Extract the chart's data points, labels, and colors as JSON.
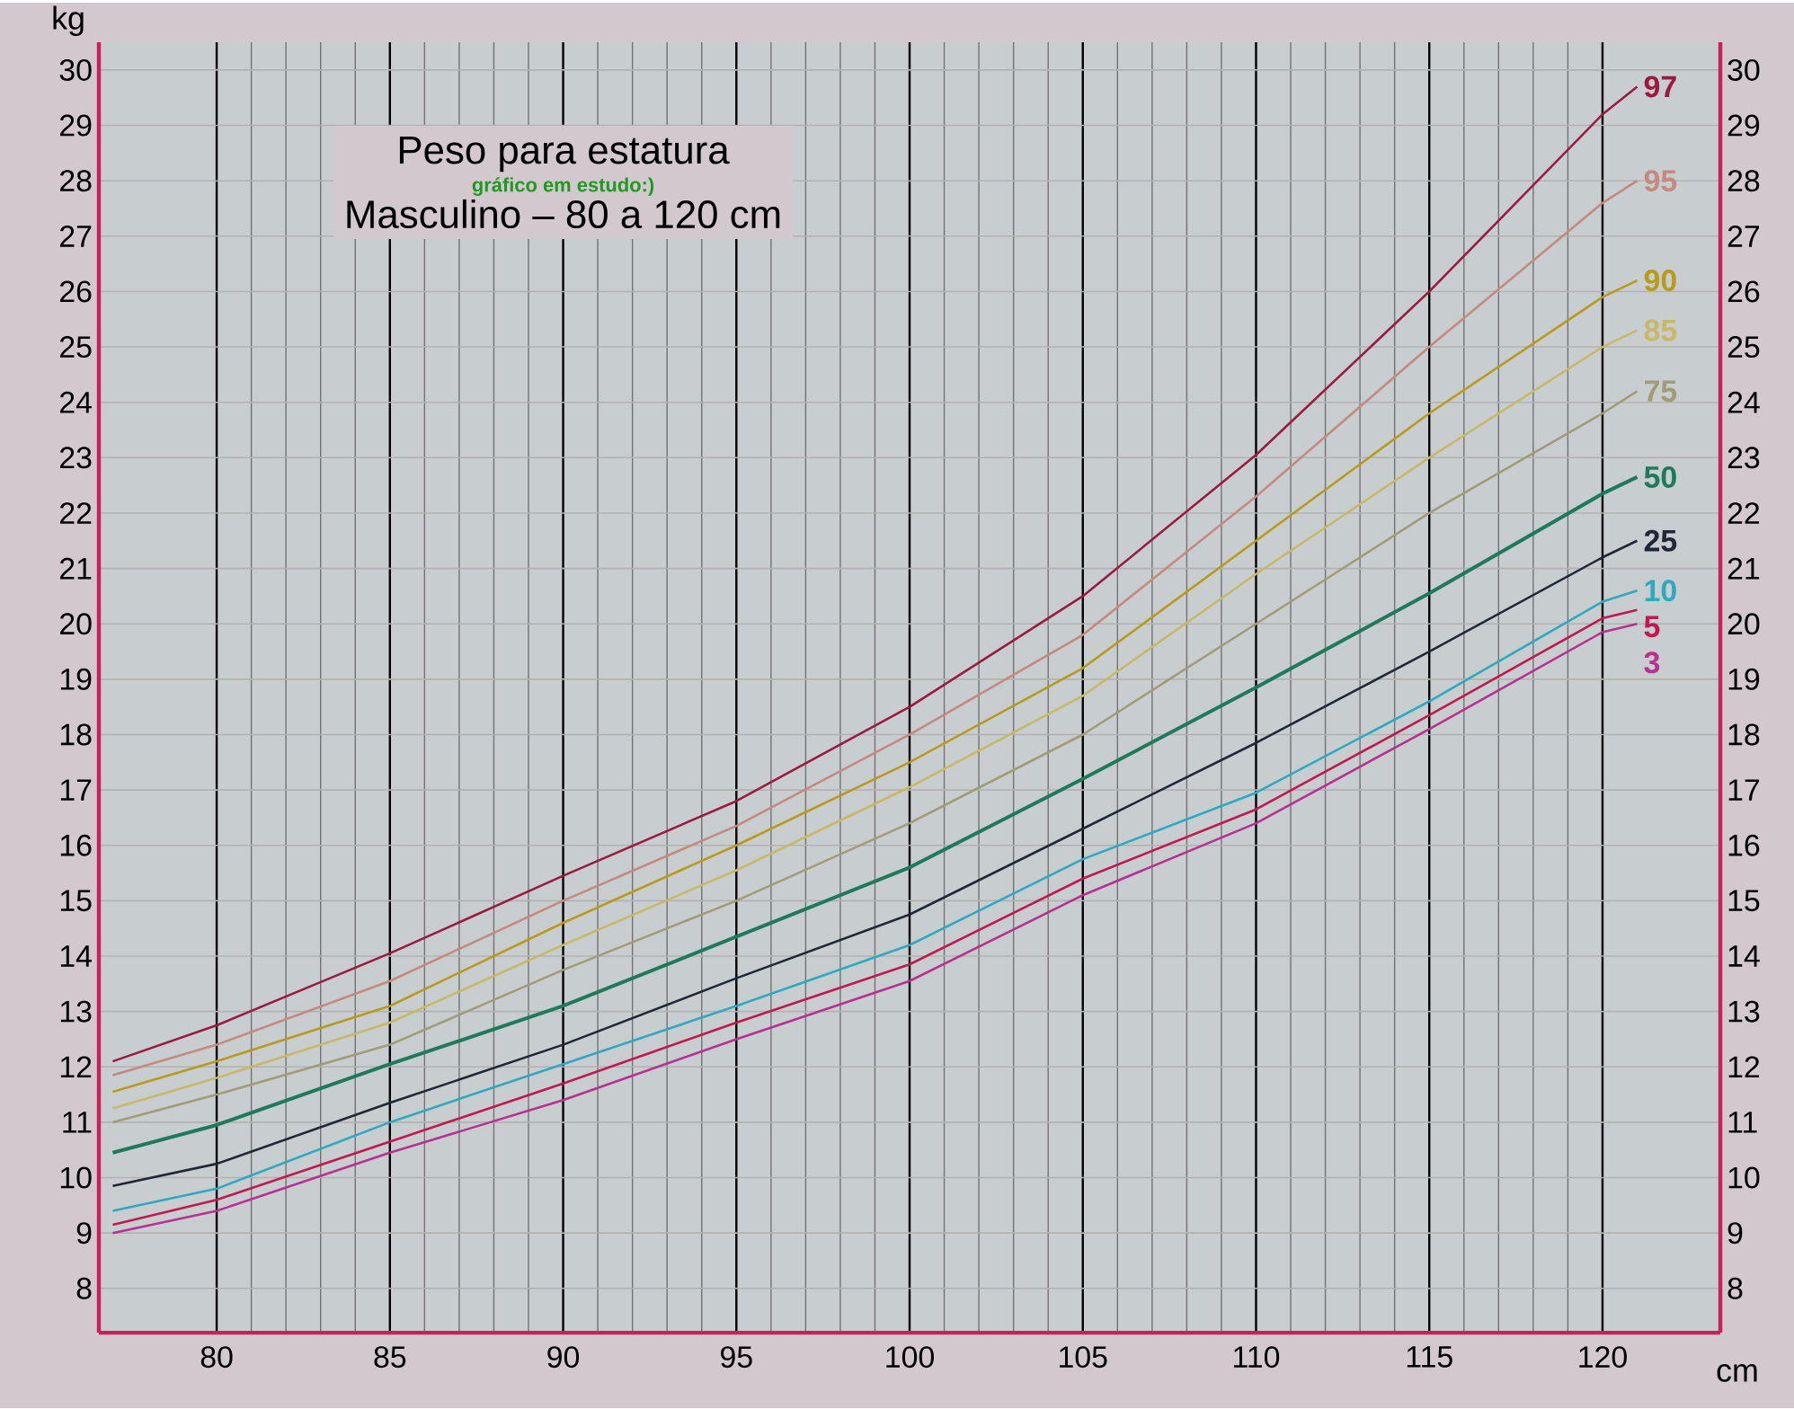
{
  "chart_data": {
    "type": "line",
    "title": "Peso para estatura",
    "subtitle": "Masculino – 80 a 120 cm",
    "xlabel": "cm",
    "ylabel": "kg",
    "annotations": [
      "gráfico em estudo:)"
    ],
    "x": [
      77,
      80,
      85,
      90,
      95,
      100,
      105,
      110,
      115,
      120,
      121
    ],
    "series": [
      {
        "name": "97",
        "color": "#9a1a40",
        "values": [
          12.1,
          12.75,
          14.05,
          15.45,
          16.8,
          18.5,
          20.5,
          23.05,
          26.0,
          29.2,
          29.7
        ]
      },
      {
        "name": "95",
        "color": "#c48a80",
        "values": [
          11.85,
          12.4,
          13.55,
          15.0,
          16.35,
          18.0,
          19.8,
          22.3,
          25.0,
          27.6,
          28.0
        ]
      },
      {
        "name": "90",
        "color": "#b89a1c",
        "values": [
          11.55,
          12.1,
          13.1,
          14.6,
          16.0,
          17.5,
          19.2,
          21.5,
          23.8,
          25.9,
          26.2
        ]
      },
      {
        "name": "85",
        "color": "#c8b868",
        "values": [
          11.25,
          11.8,
          12.8,
          14.2,
          15.55,
          17.05,
          18.7,
          20.9,
          23.0,
          25.0,
          25.3
        ]
      },
      {
        "name": "75",
        "color": "#a09c78",
        "values": [
          11.0,
          11.5,
          12.4,
          13.75,
          15.0,
          16.4,
          18.0,
          20.0,
          22.0,
          23.8,
          24.2
        ]
      },
      {
        "name": "50",
        "color": "#1e7a5a",
        "values": [
          10.45,
          10.95,
          12.05,
          13.1,
          14.35,
          15.6,
          17.2,
          18.85,
          20.55,
          22.35,
          22.65
        ]
      },
      {
        "name": "25",
        "color": "#202838",
        "values": [
          9.85,
          10.25,
          11.35,
          12.4,
          13.6,
          14.75,
          16.3,
          17.85,
          19.5,
          21.2,
          21.5
        ]
      },
      {
        "name": "10",
        "color": "#30a8c0",
        "values": [
          9.4,
          9.8,
          11.0,
          12.05,
          13.1,
          14.2,
          15.75,
          16.95,
          18.6,
          20.4,
          20.6
        ]
      },
      {
        "name": "5",
        "color": "#c01850",
        "values": [
          9.15,
          9.6,
          10.65,
          11.7,
          12.8,
          13.85,
          15.4,
          16.65,
          18.35,
          20.1,
          20.25
        ]
      },
      {
        "name": "3",
        "color": "#b83090",
        "values": [
          9.0,
          9.4,
          10.45,
          11.4,
          12.5,
          13.55,
          15.1,
          16.4,
          18.1,
          19.85,
          20.0
        ]
      }
    ],
    "xlim": [
      76.6,
      123.4
    ],
    "ylim": [
      7.2,
      30.5
    ],
    "xticks": [
      80,
      85,
      90,
      95,
      100,
      105,
      110,
      115,
      120
    ],
    "yticks": [
      8,
      9,
      10,
      11,
      12,
      13,
      14,
      15,
      16,
      17,
      18,
      19,
      20,
      21,
      22,
      23,
      24,
      25,
      26,
      27,
      28,
      29,
      30
    ],
    "y2lim": [
      7.2,
      30.5
    ],
    "y2ticks": [
      8,
      9,
      10,
      11,
      12,
      13,
      14,
      15,
      16,
      17,
      18,
      19,
      20,
      21,
      22,
      23,
      24,
      25,
      26,
      27,
      28,
      29,
      30
    ],
    "grid": true,
    "line_style": "solid"
  }
}
